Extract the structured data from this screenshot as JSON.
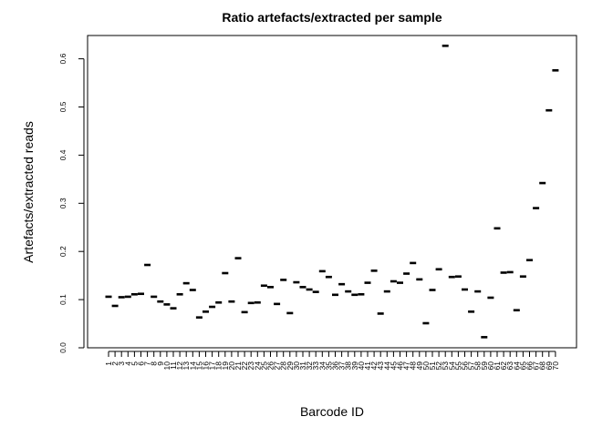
{
  "chart_data": {
    "type": "scatter",
    "title": "Ratio artefacts/extracted per sample",
    "xlabel": "Barcode ID",
    "ylabel": "Artefacts/extracted reads",
    "ylim": [
      0.0,
      0.65
    ],
    "yticks": [
      "0.0",
      "0.1",
      "0.2",
      "0.3",
      "0.4",
      "0.5",
      "0.6"
    ],
    "categories": [
      "1",
      "2",
      "3",
      "4",
      "5",
      "6",
      "7",
      "8",
      "9",
      "10",
      "11",
      "12",
      "13",
      "14",
      "15",
      "16",
      "17",
      "18",
      "19",
      "20",
      "21",
      "22",
      "23",
      "24",
      "25",
      "26",
      "27",
      "28",
      "29",
      "30",
      "31",
      "32",
      "33",
      "34",
      "35",
      "36",
      "37",
      "38",
      "39",
      "40",
      "41",
      "42",
      "43",
      "44",
      "45",
      "46",
      "47",
      "48",
      "49",
      "50",
      "51",
      "52",
      "53",
      "54",
      "55",
      "56",
      "57",
      "58",
      "59",
      "60",
      "61",
      "62",
      "63",
      "64",
      "65",
      "66",
      "67",
      "68",
      "69",
      "70"
    ],
    "values": [
      0.106,
      0.087,
      0.105,
      0.106,
      0.111,
      0.112,
      0.172,
      0.106,
      0.096,
      0.09,
      0.082,
      0.111,
      0.134,
      0.12,
      0.063,
      0.075,
      0.085,
      0.094,
      0.155,
      0.096,
      0.186,
      0.074,
      0.093,
      0.094,
      0.129,
      0.126,
      0.091,
      0.141,
      0.072,
      0.136,
      0.126,
      0.121,
      0.116,
      0.159,
      0.147,
      0.11,
      0.132,
      0.117,
      0.11,
      0.111,
      0.135,
      0.16,
      0.071,
      0.117,
      0.138,
      0.135,
      0.154,
      0.176,
      0.142,
      0.051,
      0.12,
      0.163,
      0.627,
      0.147,
      0.148,
      0.121,
      0.075,
      0.117,
      0.022,
      0.104,
      0.248,
      0.156,
      0.157,
      0.078,
      0.148,
      0.182,
      0.29,
      0.342,
      0.493,
      0.576
    ]
  }
}
